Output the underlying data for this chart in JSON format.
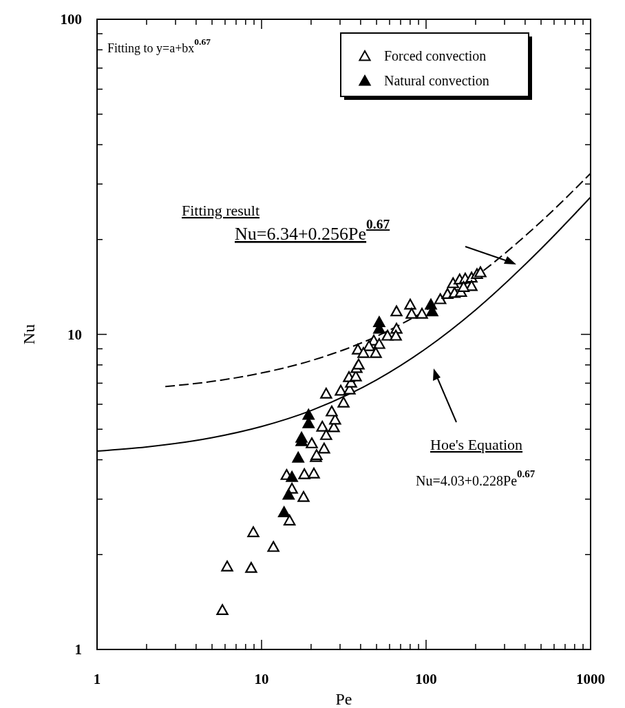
{
  "chart_data": {
    "type": "scatter",
    "xlabel": "Pe",
    "ylabel": "Nu",
    "log": "xy",
    "xlim": [
      1,
      1000
    ],
    "ylim": [
      1,
      100
    ],
    "xticks": [
      1,
      {
        "value": 2,
        "label": null
      },
      {
        "value": 3,
        "label": null
      },
      {
        "value": 4,
        "label": null
      },
      {
        "value": 5,
        "label": null
      },
      {
        "value": 6,
        "label": null
      },
      {
        "value": 7,
        "label": null
      },
      {
        "value": 8,
        "label": null
      },
      {
        "value": 9,
        "label": null
      },
      10,
      {
        "value": 20,
        "label": null
      },
      {
        "value": 30,
        "label": null
      },
      {
        "value": 40,
        "label": null
      },
      {
        "value": 50,
        "label": null
      },
      {
        "value": 60,
        "label": null
      },
      {
        "value": 70,
        "label": null
      },
      {
        "value": 80,
        "label": null
      },
      {
        "value": 90,
        "label": null
      },
      100,
      {
        "value": 200,
        "label": null
      },
      {
        "value": 300,
        "label": null
      },
      {
        "value": 400,
        "label": null
      },
      {
        "value": 500,
        "label": null
      },
      {
        "value": 600,
        "label": null
      },
      {
        "value": 700,
        "label": null
      },
      {
        "value": 800,
        "label": null
      },
      {
        "value": 900,
        "label": null
      },
      1000
    ],
    "yticks": [
      1,
      {
        "value": 2,
        "label": null
      },
      {
        "value": 3,
        "label": null
      },
      {
        "value": 4,
        "label": null
      },
      {
        "value": 5,
        "label": null
      },
      {
        "value": 6,
        "label": null
      },
      {
        "value": 7,
        "label": null
      },
      {
        "value": 8,
        "label": null
      },
      {
        "value": 9,
        "label": null
      },
      10,
      {
        "value": 20,
        "label": null
      },
      {
        "value": 30,
        "label": null
      },
      {
        "value": 40,
        "label": null
      },
      {
        "value": 50,
        "label": null
      },
      {
        "value": 60,
        "label": null
      },
      {
        "value": 70,
        "label": null
      },
      {
        "value": 80,
        "label": null
      },
      {
        "value": 90,
        "label": null
      },
      100
    ],
    "grid": false,
    "legend": "top right",
    "annotations": [
      "Fitting to y=a+bx$^{0.67}$",
      "Fitting result",
      "Nu=6.34+0.256Pe$^{0.67}$",
      "Hoe's Equation",
      "Nu=4.03+0.228Pe$^{0.67}$"
    ],
    "series": [
      {
        "name": "Forced convection",
        "color": "#ffffff",
        "marker": "triangle",
        "x": [
          5.78,
          6.18,
          8.65,
          8.91,
          11.8,
          14.8,
          15.3,
          18.0,
          14.2,
          18.2,
          20.8,
          21.4,
          20.2,
          21.6,
          24.0,
          23.4,
          24.7,
          27.5,
          28.0,
          26.7,
          31.5,
          24.7,
          30.3,
          34.3,
          35.0,
          34.0,
          37.4,
          37.8,
          38.9,
          38.5,
          66.1,
          66.1,
          58.3,
          65.5,
          48.1,
          51.9,
          45.0,
          41.6,
          49.5,
          80.1,
          81.7,
          94.4,
          122,
          135,
          149,
          163,
          146,
          160,
          173,
          189,
          204,
          214,
          189,
          169
        ],
        "values": [
          1.33,
          1.83,
          1.81,
          2.35,
          2.11,
          2.56,
          3.23,
          3.04,
          3.57,
          3.59,
          3.61,
          4.07,
          4.5,
          4.13,
          4.33,
          5.08,
          4.78,
          5.06,
          5.35,
          5.68,
          6.06,
          6.47,
          6.61,
          6.67,
          7.01,
          7.3,
          7.34,
          7.8,
          8.0,
          8.93,
          11.8,
          10.4,
          9.88,
          9.88,
          9.53,
          9.3,
          9.16,
          8.71,
          8.71,
          12.4,
          11.6,
          11.6,
          12.9,
          13.4,
          13.5,
          13.6,
          14.5,
          14.9,
          15.0,
          15.1,
          15.5,
          15.7,
          14.2,
          14.1
        ]
      },
      {
        "name": "Natural convection",
        "color": "#000000",
        "marker": "triangle",
        "x": [
          13.7,
          14.6,
          15.3,
          16.7,
          19.3,
          19.3,
          17.5,
          17.5,
          51.9,
          51.9,
          107,
          109
        ],
        "values": [
          2.72,
          3.09,
          3.52,
          4.05,
          5.54,
          5.21,
          4.69,
          4.57,
          10.9,
          10.4,
          12.4,
          11.8
        ]
      },
      {
        "type": "line",
        "marker": "none",
        "line_style": "dashed",
        "color": "#000000",
        "x": [
          2.6,
          5,
          10,
          20,
          50,
          100,
          200,
          500,
          1000
        ],
        "values": [
          6.83,
          7.09,
          7.54,
          8.25,
          9.86,
          11.94,
          15.25,
          22.8,
          32.43
        ]
      },
      {
        "type": "line",
        "marker": "none",
        "line_style": "solid",
        "color": "#000000",
        "x": [
          1,
          2,
          5,
          10,
          20,
          50,
          100,
          200,
          500,
          1000
        ],
        "values": [
          4.26,
          4.39,
          4.7,
          5.1,
          5.73,
          7.17,
          9.02,
          11.96,
          18.69,
          27.26
        ]
      }
    ]
  }
}
